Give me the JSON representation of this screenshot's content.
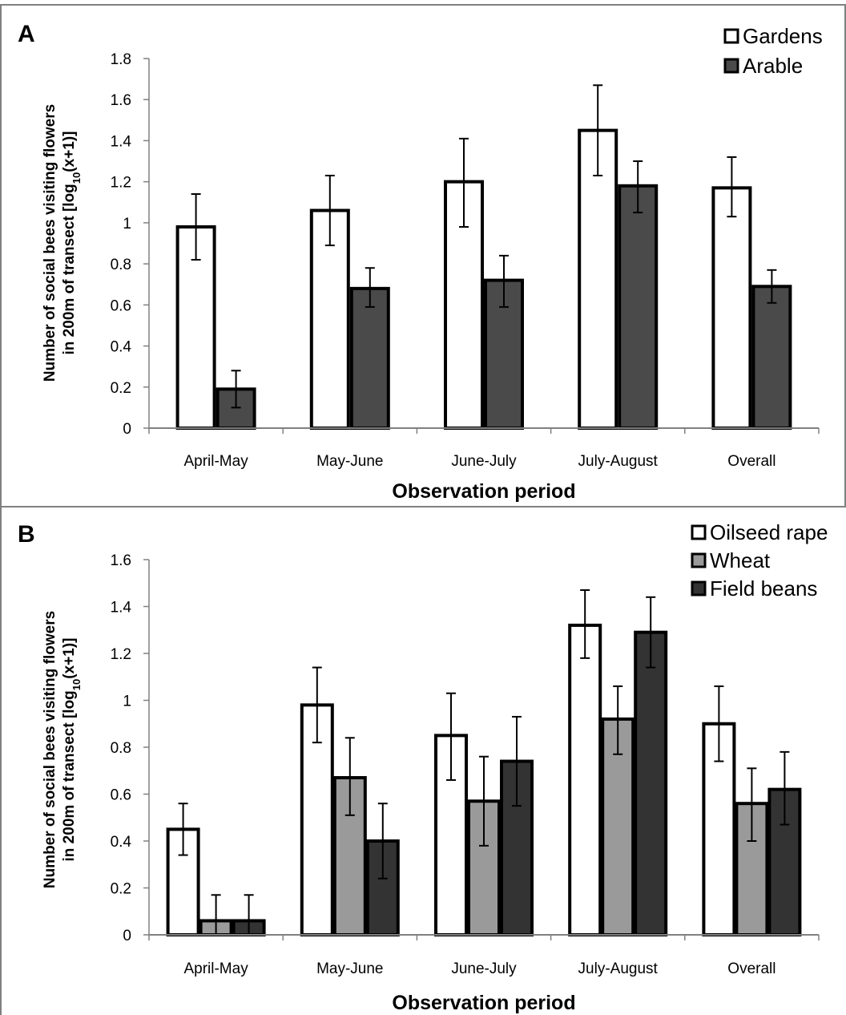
{
  "chart_data": [
    {
      "type": "bar",
      "panel_label": "A",
      "categories": [
        "April-May",
        "May-June",
        "June-July",
        "July-August",
        "Overall"
      ],
      "xlabel": "Observation period",
      "ylabel_line1": "Number of social bees visiting flowers",
      "ylabel_line2_pre": "in 200m of transect [log",
      "ylabel_line2_sub": "10",
      "ylabel_line2_post": "(x+1)]",
      "ylim": [
        0,
        1.8
      ],
      "yticks": [
        0,
        0.2,
        0.4,
        0.6,
        0.8,
        1,
        1.2,
        1.4,
        1.6,
        1.8
      ],
      "ytick_labels": [
        "0",
        "0.2",
        "0.4",
        "0.6",
        "0.8",
        "1",
        "1.2",
        "1.4",
        "1.6",
        "1.8"
      ],
      "legend_position": "top-right",
      "series": [
        {
          "name": "Gardens",
          "color": "#ffffff",
          "values": [
            0.98,
            1.06,
            1.2,
            1.45,
            1.17
          ],
          "err_low": [
            0.82,
            0.89,
            0.98,
            1.23,
            1.03
          ],
          "err_high": [
            1.14,
            1.23,
            1.41,
            1.67,
            1.32
          ]
        },
        {
          "name": "Arable",
          "color": "#4a4a4a",
          "values": [
            0.19,
            0.68,
            0.72,
            1.18,
            0.69
          ],
          "err_low": [
            0.1,
            0.59,
            0.59,
            1.05,
            0.61
          ],
          "err_high": [
            0.28,
            0.78,
            0.84,
            1.3,
            0.77
          ]
        }
      ]
    },
    {
      "type": "bar",
      "panel_label": "B",
      "categories": [
        "April-May",
        "May-June",
        "June-July",
        "July-August",
        "Overall"
      ],
      "xlabel": "Observation period",
      "ylabel_line1": "Number of social bees visiting flowers",
      "ylabel_line2_pre": "in 200m of transect [log",
      "ylabel_line2_sub": "10",
      "ylabel_line2_post": "(x+1)]",
      "ylim": [
        0,
        1.6
      ],
      "yticks": [
        0,
        0.2,
        0.4,
        0.6,
        0.8,
        1,
        1.2,
        1.4,
        1.6
      ],
      "ytick_labels": [
        "0",
        "0.2",
        "0.4",
        "0.6",
        "0.8",
        "1",
        "1.2",
        "1.4",
        "1.6"
      ],
      "legend_position": "top-right",
      "series": [
        {
          "name": "Oilseed rape",
          "color": "#ffffff",
          "values": [
            0.45,
            0.98,
            0.85,
            1.32,
            0.9
          ],
          "err_low": [
            0.34,
            0.82,
            0.66,
            1.18,
            0.74
          ],
          "err_high": [
            0.56,
            1.14,
            1.03,
            1.47,
            1.06
          ]
        },
        {
          "name": "Wheat",
          "color": "#9a9a9a",
          "values": [
            0.06,
            0.67,
            0.57,
            0.92,
            0.56
          ],
          "err_low": [
            0.0,
            0.51,
            0.38,
            0.77,
            0.4
          ],
          "err_high": [
            0.17,
            0.84,
            0.76,
            1.06,
            0.71
          ]
        },
        {
          "name": "Field beans",
          "color": "#333333",
          "values": [
            0.06,
            0.4,
            0.74,
            1.29,
            0.62
          ],
          "err_low": [
            0.0,
            0.24,
            0.55,
            1.14,
            0.47
          ],
          "err_high": [
            0.17,
            0.56,
            0.93,
            1.44,
            0.78
          ]
        }
      ]
    }
  ],
  "colors": {
    "frame": "#808080",
    "axis": "#808080",
    "bar_stroke": "#000000"
  }
}
